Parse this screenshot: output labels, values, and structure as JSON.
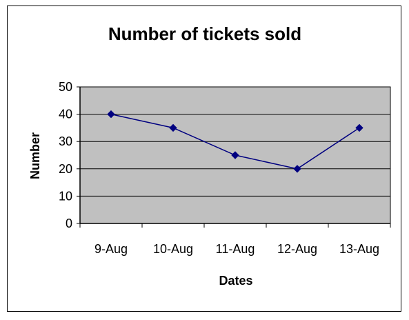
{
  "chart_data": {
    "type": "line",
    "title": "Number of tickets sold",
    "xlabel": "Dates",
    "ylabel": "Number",
    "categories": [
      "9-Aug",
      "10-Aug",
      "11-Aug",
      "12-Aug",
      "13-Aug"
    ],
    "series": [
      {
        "values": [
          40,
          35,
          25,
          20,
          35
        ]
      }
    ],
    "ylim": [
      0,
      50
    ],
    "yticks": [
      0,
      10,
      20,
      30,
      40,
      50
    ],
    "grid": true,
    "legend": "none",
    "colors": {
      "plot_background": "#c0c0c0",
      "series_line": "#000080",
      "gridline": "#000000"
    }
  }
}
